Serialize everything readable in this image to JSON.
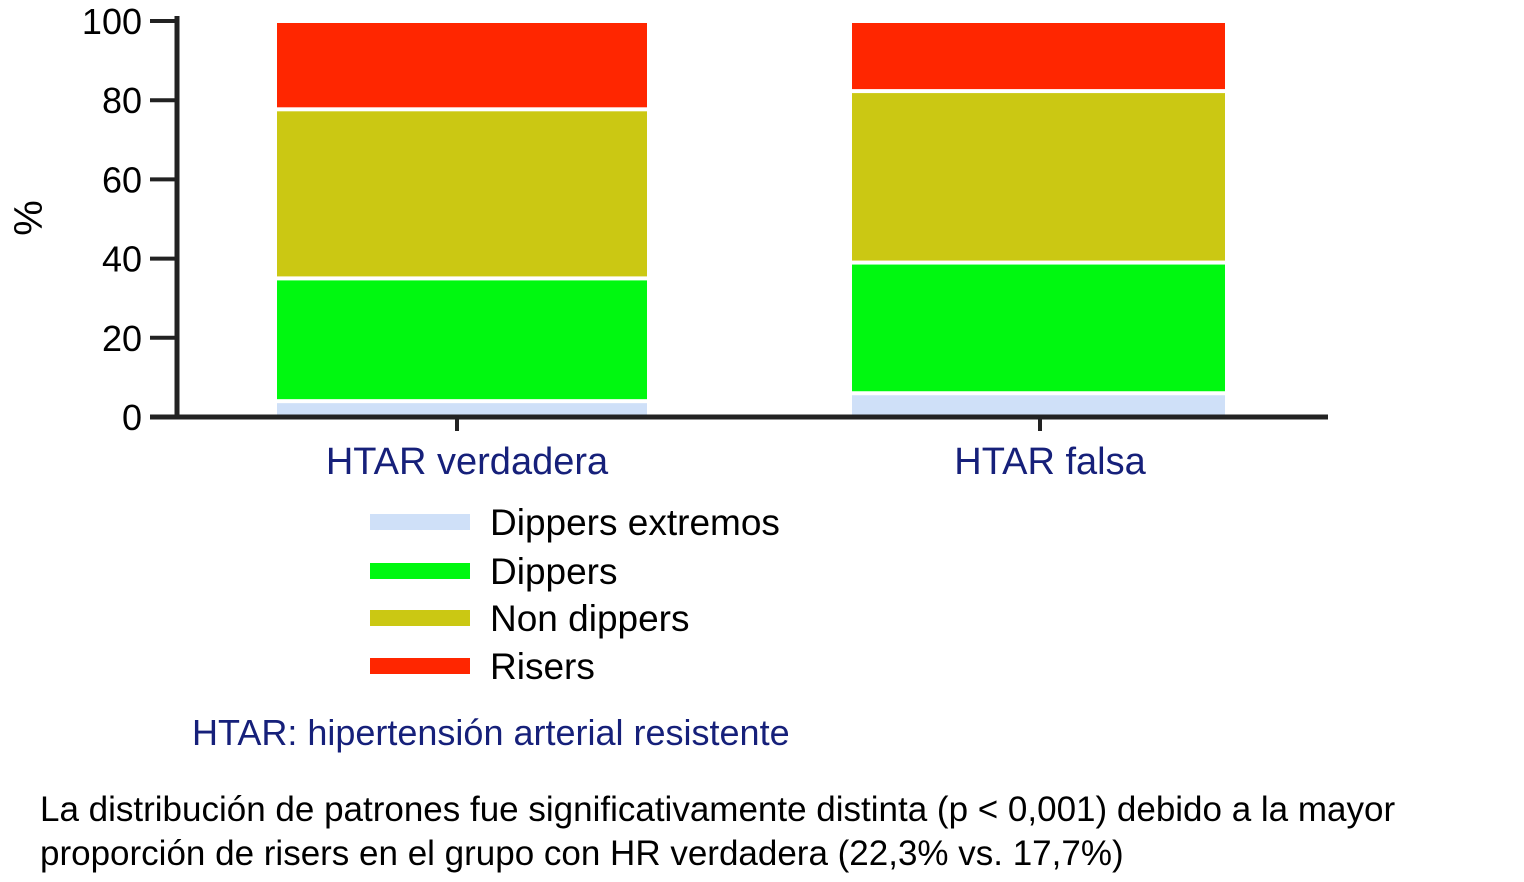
{
  "chart_data": {
    "type": "bar",
    "stacked": true,
    "ylabel": "%",
    "xlabel": "",
    "ylim": [
      0,
      100
    ],
    "yticks": [
      0,
      20,
      40,
      60,
      80,
      100
    ],
    "categories": [
      "HTAR verdadera",
      "HTAR falsa"
    ],
    "series": [
      {
        "name": "Dippers extremos",
        "color": "#cfe0f8",
        "values": [
          4,
          6
        ]
      },
      {
        "name": "Dippers",
        "color": "#00f810",
        "values": [
          31,
          33
        ]
      },
      {
        "name": "Non dippers",
        "color": "#cbc813",
        "values": [
          42.7,
          43.3
        ]
      },
      {
        "name": "Risers",
        "color": "#ff2600",
        "values": [
          22.3,
          17.7
        ]
      }
    ],
    "legend_position": "bottom-left",
    "grid": false,
    "note": "HTAR: hipertensión arterial resistente"
  },
  "caption": "La distribución de patrones fue significativamente distinta (p < 0,001) debido a la mayor proporción de risers en el grupo con HR verdadera (22,3% vs. 17,7%)"
}
